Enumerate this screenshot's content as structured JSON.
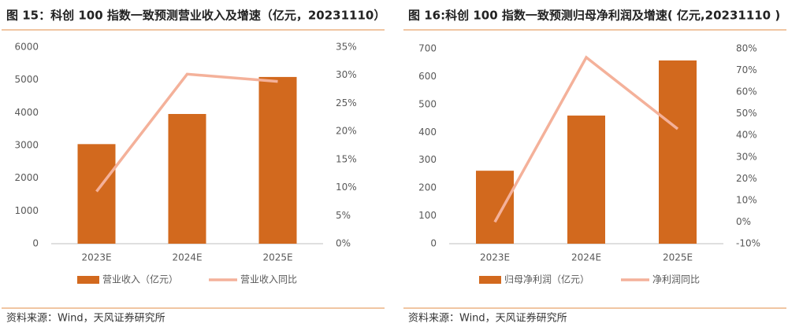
{
  "chart_data": [
    {
      "type": "bar",
      "title": "图 15：科创 100 指数一致预测营业收入及增速（亿元，20231110）",
      "categories": [
        "2023E",
        "2024E",
        "2025E"
      ],
      "series": [
        {
          "name": "营业收入（亿元）",
          "color": "#d2691e",
          "values": [
            3040,
            3960,
            5090
          ]
        },
        {
          "name": "营业收入同比",
          "color": "#f4b19a",
          "values": [
            9.3,
            30.2,
            28.9
          ],
          "axis": "y2",
          "type": "line"
        }
      ],
      "ylim": [
        0,
        6000
      ],
      "yticks": [
        0,
        1000,
        2000,
        3000,
        4000,
        5000,
        6000
      ],
      "y2lim": [
        0,
        35
      ],
      "y2ticks": [
        {
          "value": 0,
          "label": "0%"
        },
        {
          "value": 5,
          "label": "5%"
        },
        {
          "value": 10,
          "label": "10%"
        },
        {
          "value": 15,
          "label": "15%"
        },
        {
          "value": 20,
          "label": "20%"
        },
        {
          "value": 25,
          "label": "25%"
        },
        {
          "value": 30,
          "label": "30%"
        },
        {
          "value": 35,
          "label": "35%"
        }
      ],
      "source": "资料来源：Wind，天风证券研究所"
    },
    {
      "type": "bar",
      "title": "图 16:科创 100 指数一致预测归母净利润及增速( 亿元,20231110 )",
      "categories": [
        "2023E",
        "2024E",
        "2025E"
      ],
      "series": [
        {
          "name": "归母净利润（亿元）",
          "color": "#d2691e",
          "values": [
            262,
            460,
            658
          ]
        },
        {
          "name": "净利润同比",
          "color": "#f4b19a",
          "values": [
            0,
            76,
            43
          ],
          "axis": "y2",
          "type": "line"
        }
      ],
      "ylim": [
        0,
        700
      ],
      "yticks": [
        0,
        100,
        200,
        300,
        400,
        500,
        600,
        700
      ],
      "y2lim": [
        -10,
        80
      ],
      "y2ticks": [
        {
          "value": -10,
          "label": "-10%"
        },
        {
          "value": 0,
          "label": "0%"
        },
        {
          "value": 10,
          "label": "10%"
        },
        {
          "value": 20,
          "label": "20%"
        },
        {
          "value": 30,
          "label": "30%"
        },
        {
          "value": 40,
          "label": "40%"
        },
        {
          "value": 50,
          "label": "50%"
        },
        {
          "value": 60,
          "label": "60%"
        },
        {
          "value": 70,
          "label": "70%"
        },
        {
          "value": 80,
          "label": "80%"
        }
      ],
      "source": "资料来源：Wind，天风证券研究所"
    }
  ]
}
